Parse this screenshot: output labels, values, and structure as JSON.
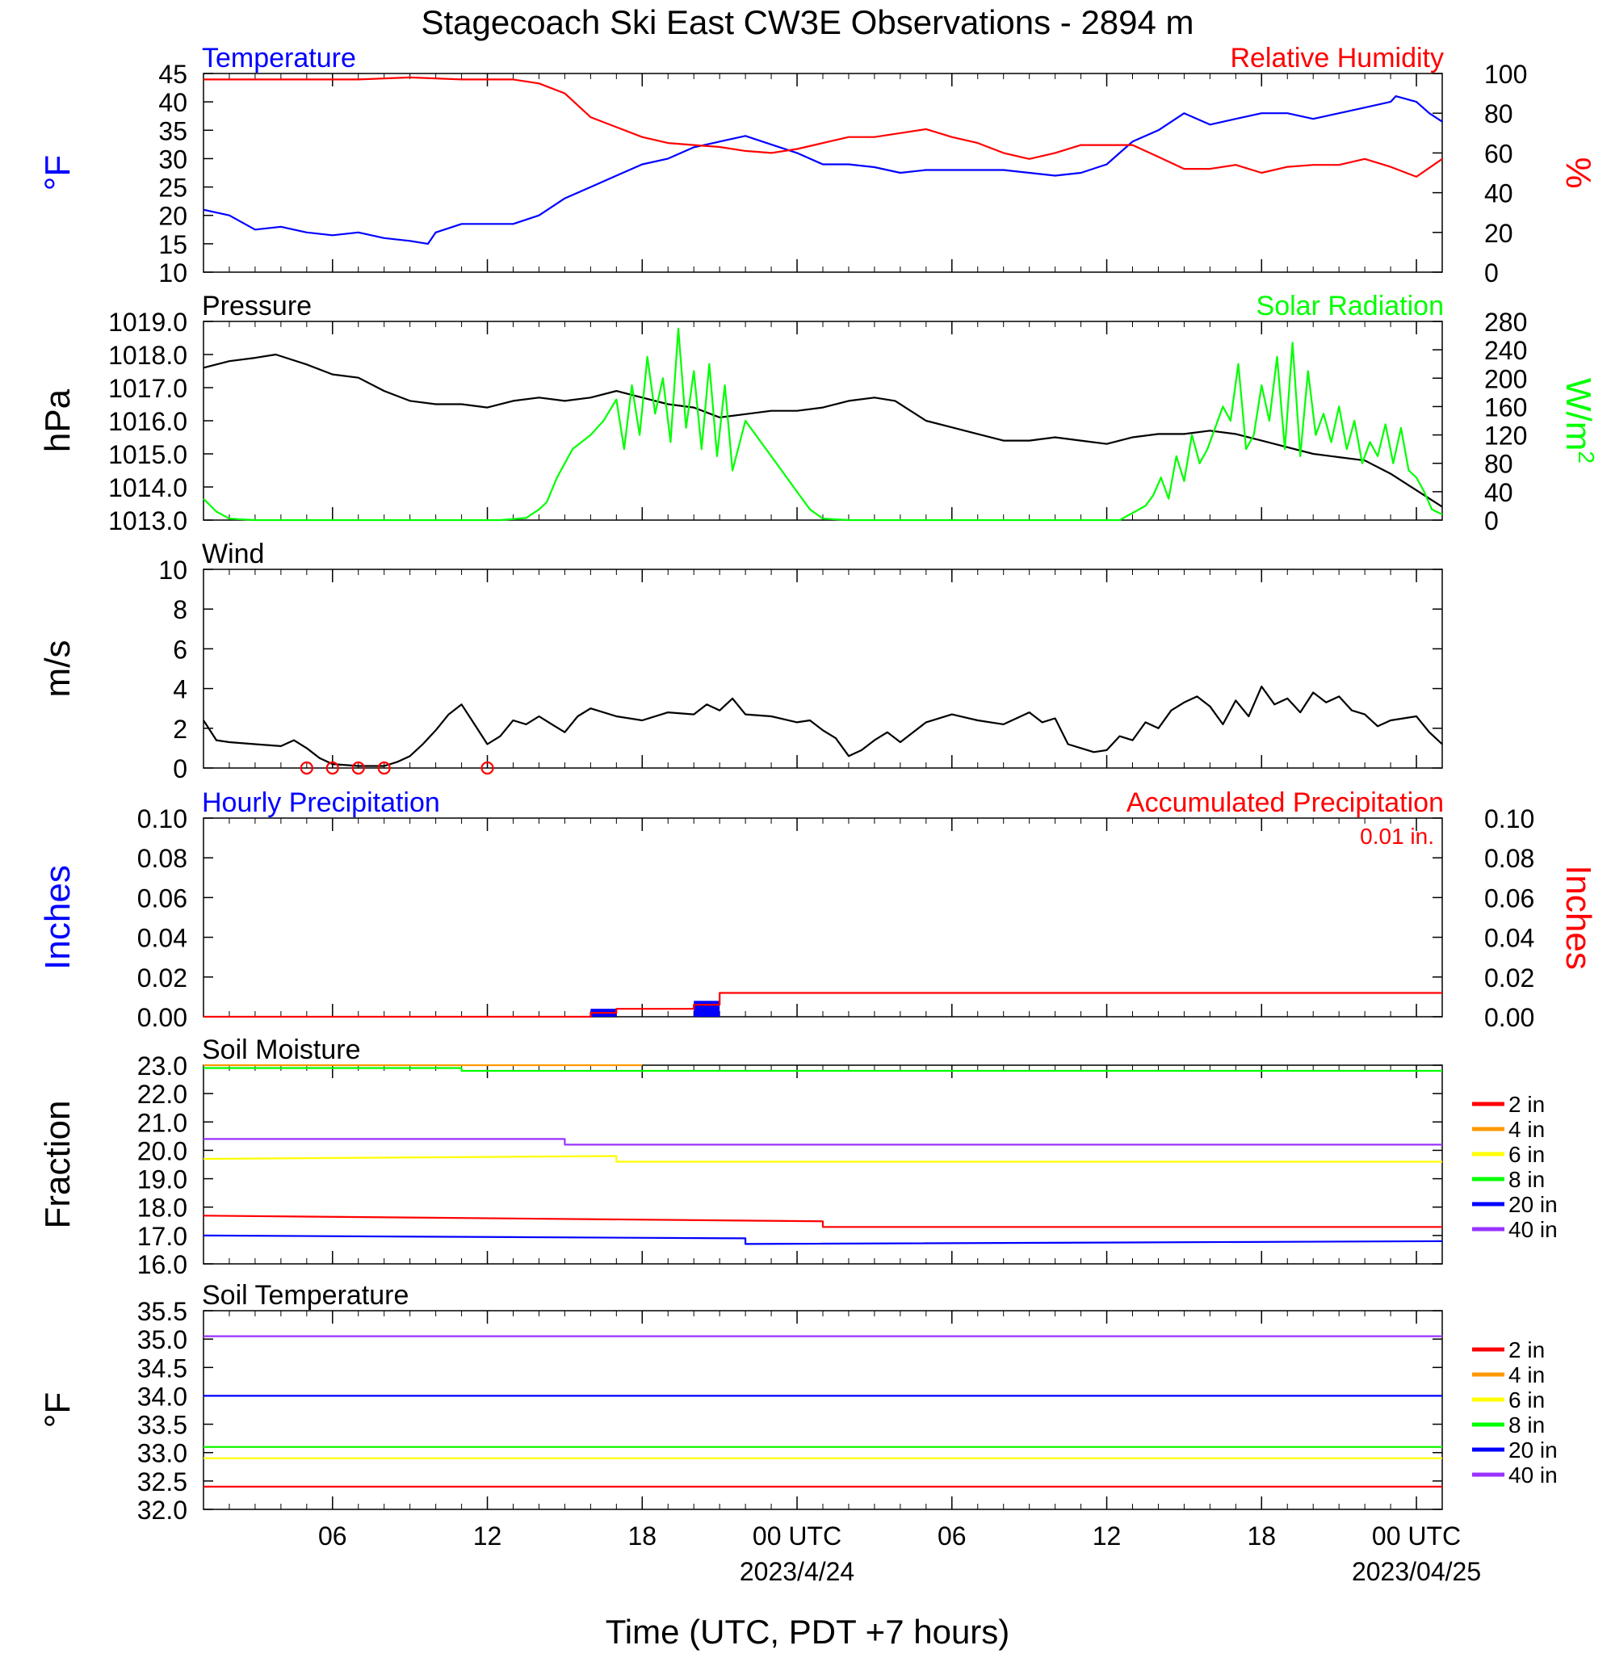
{
  "title": "Stagecoach Ski East CW3E Observations - 2894 m",
  "xlabel": "Time (UTC, PDT +7 hours)",
  "colors": {
    "blue": "#0000ff",
    "red": "#ff0000",
    "green": "#00ff00",
    "black": "#000000",
    "orange": "#ff9900",
    "yellow": "#ffff00",
    "purple": "#9933ff"
  },
  "x_axis": {
    "range_hours": [
      0,
      48
    ],
    "ticks": [
      {
        "h": 5,
        "label": "06"
      },
      {
        "h": 11,
        "label": "12"
      },
      {
        "h": 17,
        "label": "18"
      },
      {
        "h": 23,
        "label": "00 UTC"
      },
      {
        "h": 29,
        "label": "06"
      },
      {
        "h": 35,
        "label": "12"
      },
      {
        "h": 41,
        "label": "18"
      },
      {
        "h": 47,
        "label": "00 UTC"
      }
    ],
    "date_labels": [
      {
        "h": 23,
        "label": "2023/4/24"
      },
      {
        "h": 47,
        "label": "2023/04/25"
      }
    ]
  },
  "chart_data": [
    {
      "type": "line",
      "id": "temp_rh",
      "title_left": "Temperature",
      "title_right": "Relative Humidity",
      "ylabel_left": "°F",
      "ylabel_right": "%",
      "yticks_left": [
        "45",
        "40",
        "35",
        "30",
        "25",
        "20",
        "15",
        "10"
      ],
      "ylim_left": [
        10,
        45
      ],
      "yticks_right": [
        "100",
        "80",
        "60",
        "40",
        "20",
        "0"
      ],
      "ylim_right": [
        0,
        100
      ],
      "series": [
        {
          "name": "Temperature",
          "axis": "left",
          "color": "#0000ff",
          "x": [
            0,
            1,
            2,
            3,
            4,
            5,
            6,
            7,
            8,
            8.7,
            9,
            10,
            11,
            12,
            13,
            14,
            15,
            16,
            17,
            18,
            19,
            20,
            21,
            22,
            23,
            24,
            25,
            26,
            27,
            28,
            29,
            30,
            31,
            32,
            33,
            34,
            35,
            36,
            37,
            38,
            39,
            40,
            41,
            42,
            43,
            44,
            45,
            46,
            46.2,
            47,
            47.5,
            48
          ],
          "y": [
            21,
            20,
            17.5,
            18,
            17,
            16.5,
            17,
            16,
            15.5,
            15,
            17,
            18.5,
            18.5,
            18.5,
            20,
            23,
            25,
            27,
            29,
            30,
            32,
            33,
            34,
            32.5,
            31,
            29,
            29,
            28.5,
            27.5,
            28,
            28,
            28,
            28,
            27.5,
            27,
            27.5,
            29,
            33,
            35,
            38,
            36,
            37,
            38,
            38,
            37,
            38,
            39,
            40,
            41,
            40,
            38,
            36.5
          ]
        },
        {
          "name": "Relative Humidity",
          "axis": "right",
          "color": "#ff0000",
          "x": [
            0,
            2,
            4,
            6,
            8,
            10,
            12,
            13,
            14,
            15,
            16,
            17,
            18,
            19,
            20,
            21,
            22,
            23,
            24,
            25,
            26,
            27,
            28,
            29,
            30,
            31,
            32,
            33,
            34,
            35,
            36,
            37,
            38,
            39,
            40,
            41,
            42,
            43,
            44,
            45,
            46,
            47,
            48
          ],
          "y": [
            97,
            97,
            97,
            97,
            98,
            97,
            97,
            95,
            90,
            78,
            73,
            68,
            65,
            64,
            63,
            61,
            60,
            62,
            65,
            68,
            68,
            70,
            72,
            68,
            65,
            60,
            57,
            60,
            64,
            64,
            64,
            58,
            52,
            52,
            54,
            50,
            53,
            54,
            54,
            57,
            53,
            48,
            57
          ]
        }
      ]
    },
    {
      "type": "line",
      "id": "pres_solar",
      "title_left": "Pressure",
      "title_right": "Solar Radiation",
      "ylabel_left": "hPa",
      "ylabel_right": "W/m2",
      "yticks_left": [
        "1019.0",
        "1018.0",
        "1017.0",
        "1016.0",
        "1015.0",
        "1014.0",
        "1013.0"
      ],
      "ylim_left": [
        1013,
        1019
      ],
      "yticks_right": [
        "280",
        "240",
        "200",
        "160",
        "120",
        "80",
        "40",
        "0"
      ],
      "ylim_right": [
        0,
        280
      ],
      "series": [
        {
          "name": "Pressure",
          "axis": "left",
          "color": "#000000",
          "x": [
            0,
            1,
            2,
            2.8,
            4,
            5,
            6,
            7,
            8,
            9,
            10,
            11,
            12,
            13,
            14,
            15,
            16,
            17,
            18,
            19,
            20,
            21,
            22,
            23,
            24,
            25,
            26,
            26.8,
            28,
            29,
            30,
            31,
            32,
            33,
            34,
            35,
            36,
            37,
            38,
            39,
            40,
            41,
            42,
            43,
            44,
            45,
            46,
            47,
            48
          ],
          "y": [
            1017.6,
            1017.8,
            1017.9,
            1018.0,
            1017.7,
            1017.4,
            1017.3,
            1016.9,
            1016.6,
            1016.5,
            1016.5,
            1016.4,
            1016.6,
            1016.7,
            1016.6,
            1016.7,
            1016.9,
            1016.7,
            1016.5,
            1016.4,
            1016.1,
            1016.2,
            1016.3,
            1016.3,
            1016.4,
            1016.6,
            1016.7,
            1016.6,
            1016.0,
            1015.8,
            1015.6,
            1015.4,
            1015.4,
            1015.5,
            1015.4,
            1015.3,
            1015.5,
            1015.6,
            1015.6,
            1015.7,
            1015.6,
            1015.4,
            1015.2,
            1015.0,
            1014.9,
            1014.8,
            1014.4,
            1013.9,
            1013.4
          ]
        },
        {
          "name": "Solar Radiation",
          "axis": "right",
          "color": "#00ff00",
          "x": [
            0,
            0.5,
            1,
            2,
            6,
            11,
            11.5,
            12.5,
            13,
            13.3,
            13.7,
            14.3,
            15,
            15.5,
            16,
            16.3,
            16.6,
            16.9,
            17.2,
            17.5,
            17.8,
            18.1,
            18.4,
            18.7,
            19,
            19.3,
            19.6,
            19.9,
            20.2,
            20.5,
            21,
            21.6,
            22.2,
            23,
            23.5,
            24,
            25,
            33,
            35,
            35.5,
            36,
            36.5,
            36.8,
            37.1,
            37.4,
            37.7,
            38,
            38.3,
            38.6,
            38.9,
            39.2,
            39.5,
            39.8,
            40.1,
            40.4,
            40.7,
            41,
            41.3,
            41.6,
            41.9,
            42.2,
            42.5,
            42.8,
            43.1,
            43.4,
            43.7,
            44,
            44.3,
            44.6,
            44.9,
            45.2,
            45.5,
            45.8,
            46.1,
            46.4,
            46.7,
            47,
            47.3,
            47.6,
            48
          ],
          "y": [
            30,
            12,
            2,
            0,
            0,
            0,
            0,
            3,
            15,
            25,
            60,
            100,
            120,
            140,
            170,
            100,
            190,
            120,
            230,
            150,
            200,
            110,
            270,
            130,
            210,
            100,
            220,
            90,
            190,
            70,
            140,
            110,
            80,
            40,
            15,
            2,
            0,
            0,
            0,
            0,
            10,
            20,
            35,
            60,
            30,
            90,
            55,
            120,
            80,
            100,
            130,
            160,
            140,
            220,
            100,
            120,
            190,
            140,
            230,
            100,
            250,
            90,
            210,
            120,
            150,
            110,
            160,
            100,
            140,
            80,
            110,
            90,
            135,
            80,
            130,
            70,
            60,
            40,
            15,
            8
          ]
        }
      ]
    },
    {
      "type": "line",
      "id": "wind",
      "title_left": "Wind",
      "ylabel_left": "m/s",
      "yticks_left": [
        "10",
        "8",
        "6",
        "4",
        "2",
        "0"
      ],
      "ylim_left": [
        0,
        10
      ],
      "series": [
        {
          "name": "Wind",
          "axis": "left",
          "color": "#000000",
          "x": [
            0,
            0.5,
            1,
            2,
            3,
            3.5,
            4,
            4.5,
            5,
            6,
            7,
            7.5,
            8,
            8.5,
            9,
            9.5,
            10,
            10.5,
            11,
            11.5,
            12,
            12.5,
            13,
            13.5,
            14,
            14.5,
            15,
            16,
            17,
            18,
            19,
            19.5,
            20,
            20.5,
            21,
            22,
            23,
            23.5,
            24,
            24.5,
            25,
            25.5,
            26,
            26.5,
            27,
            28,
            29,
            30,
            31,
            32,
            32.5,
            33,
            33.5,
            34,
            34.5,
            35,
            35.5,
            36,
            36.5,
            37,
            37.5,
            38,
            38.5,
            39,
            39.5,
            40,
            40.5,
            41,
            41.5,
            42,
            42.5,
            43,
            43.5,
            44,
            44.5,
            45,
            45.5,
            46,
            46.5,
            47,
            47.5,
            48
          ],
          "y": [
            2.4,
            1.4,
            1.3,
            1.2,
            1.1,
            1.4,
            1.0,
            0.5,
            0.2,
            0.1,
            0.1,
            0.3,
            0.6,
            1.2,
            1.9,
            2.7,
            3.2,
            2.2,
            1.2,
            1.6,
            2.4,
            2.2,
            2.6,
            2.2,
            1.8,
            2.6,
            3.0,
            2.6,
            2.4,
            2.8,
            2.7,
            3.2,
            2.9,
            3.5,
            2.7,
            2.6,
            2.3,
            2.4,
            1.9,
            1.5,
            0.6,
            0.9,
            1.4,
            1.8,
            1.3,
            2.3,
            2.7,
            2.4,
            2.2,
            2.8,
            2.3,
            2.5,
            1.2,
            1.0,
            0.8,
            0.9,
            1.6,
            1.4,
            2.3,
            2.0,
            2.9,
            3.3,
            3.6,
            3.1,
            2.2,
            3.4,
            2.6,
            4.1,
            3.2,
            3.5,
            2.8,
            3.8,
            3.3,
            3.6,
            2.9,
            2.7,
            2.1,
            2.4,
            2.5,
            2.6,
            1.8,
            1.2
          ]
        }
      ],
      "calm_markers_h": [
        4,
        5,
        6,
        7,
        11
      ]
    },
    {
      "type": "bar",
      "id": "precip",
      "title_left": "Hourly Precipitation",
      "title_right": "Accumulated Precipitation",
      "annotation": "0.01 in.",
      "ylabel_left": "Inches",
      "ylabel_right": "Inches",
      "yticks_left": [
        "0.10",
        "0.08",
        "0.06",
        "0.04",
        "0.02",
        "0.00"
      ],
      "ylim_left": [
        0,
        0.1
      ],
      "yticks_right": [
        "0.10",
        "0.08",
        "0.06",
        "0.04",
        "0.02",
        "0.00"
      ],
      "ylim_right": [
        0,
        0.1
      ],
      "series": [
        {
          "name": "Hourly Precipitation",
          "axis": "left",
          "color": "#0000ff",
          "bars": [
            {
              "x0": 15,
              "x1": 16,
              "y": 0.004
            },
            {
              "x0": 19,
              "x1": 20,
              "y": 0.008
            }
          ]
        },
        {
          "name": "Accumulated Precipitation",
          "axis": "right",
          "color": "#ff0000",
          "step": true,
          "x": [
            0,
            15,
            15,
            16,
            16,
            19,
            19,
            20,
            20,
            48
          ],
          "y": [
            0,
            0,
            0.002,
            0.002,
            0.004,
            0.004,
            0.006,
            0.006,
            0.012,
            0.012
          ]
        }
      ]
    },
    {
      "type": "line",
      "id": "soil_moisture",
      "title_left": "Soil Moisture",
      "ylabel_left": "Fraction",
      "yticks_left": [
        "23.0",
        "22.0",
        "21.0",
        "20.0",
        "19.0",
        "18.0",
        "17.0",
        "16.0"
      ],
      "ylim_left": [
        16,
        23
      ],
      "legend": [
        "2 in",
        "4 in",
        "6 in",
        "8 in",
        "20 in",
        "40 in"
      ],
      "series": [
        {
          "name": "2 in",
          "color": "#ff0000",
          "x": [
            0,
            24,
            24,
            48
          ],
          "y": [
            17.7,
            17.5,
            17.3,
            17.3
          ]
        },
        {
          "name": "4 in",
          "color": "#ff9900",
          "x": [
            0,
            17
          ],
          "y": [
            23.0,
            23.0
          ]
        },
        {
          "name": "6 in",
          "color": "#ffff00",
          "x": [
            0,
            16,
            16,
            48
          ],
          "y": [
            19.7,
            19.8,
            19.6,
            19.6
          ]
        },
        {
          "name": "8 in",
          "color": "#00ff00",
          "x": [
            0,
            10,
            10,
            48
          ],
          "y": [
            22.9,
            22.9,
            22.8,
            22.8
          ]
        },
        {
          "name": "20 in",
          "color": "#0000ff",
          "x": [
            0,
            21,
            21,
            48
          ],
          "y": [
            17.0,
            16.9,
            16.7,
            16.8
          ]
        },
        {
          "name": "40 in",
          "color": "#9933ff",
          "x": [
            0,
            14,
            14,
            48
          ],
          "y": [
            20.4,
            20.4,
            20.2,
            20.2
          ]
        }
      ]
    },
    {
      "type": "line",
      "id": "soil_temp",
      "title_left": "Soil Temperature",
      "ylabel_left": "°F",
      "yticks_left": [
        "35.5",
        "35.0",
        "34.5",
        "34.0",
        "33.5",
        "33.0",
        "32.5",
        "32.0"
      ],
      "ylim_left": [
        32,
        35.5
      ],
      "legend": [
        "2 in",
        "4 in",
        "6 in",
        "8 in",
        "20 in",
        "40 in"
      ],
      "series": [
        {
          "name": "2 in",
          "color": "#ff0000",
          "x": [
            0,
            48
          ],
          "y": [
            32.4,
            32.4
          ]
        },
        {
          "name": "4 in",
          "color": "#ff9900",
          "x": [
            0,
            48
          ],
          "y": [
            33.1,
            33.1
          ]
        },
        {
          "name": "6 in",
          "color": "#ffff00",
          "x": [
            0,
            48
          ],
          "y": [
            32.9,
            32.9
          ]
        },
        {
          "name": "8 in",
          "color": "#00ff00",
          "x": [
            0,
            48
          ],
          "y": [
            33.1,
            33.1
          ]
        },
        {
          "name": "20 in",
          "color": "#0000ff",
          "x": [
            0,
            48
          ],
          "y": [
            34.0,
            34.0
          ]
        },
        {
          "name": "40 in",
          "color": "#9933ff",
          "x": [
            0,
            48
          ],
          "y": [
            35.05,
            35.05
          ]
        }
      ]
    }
  ]
}
